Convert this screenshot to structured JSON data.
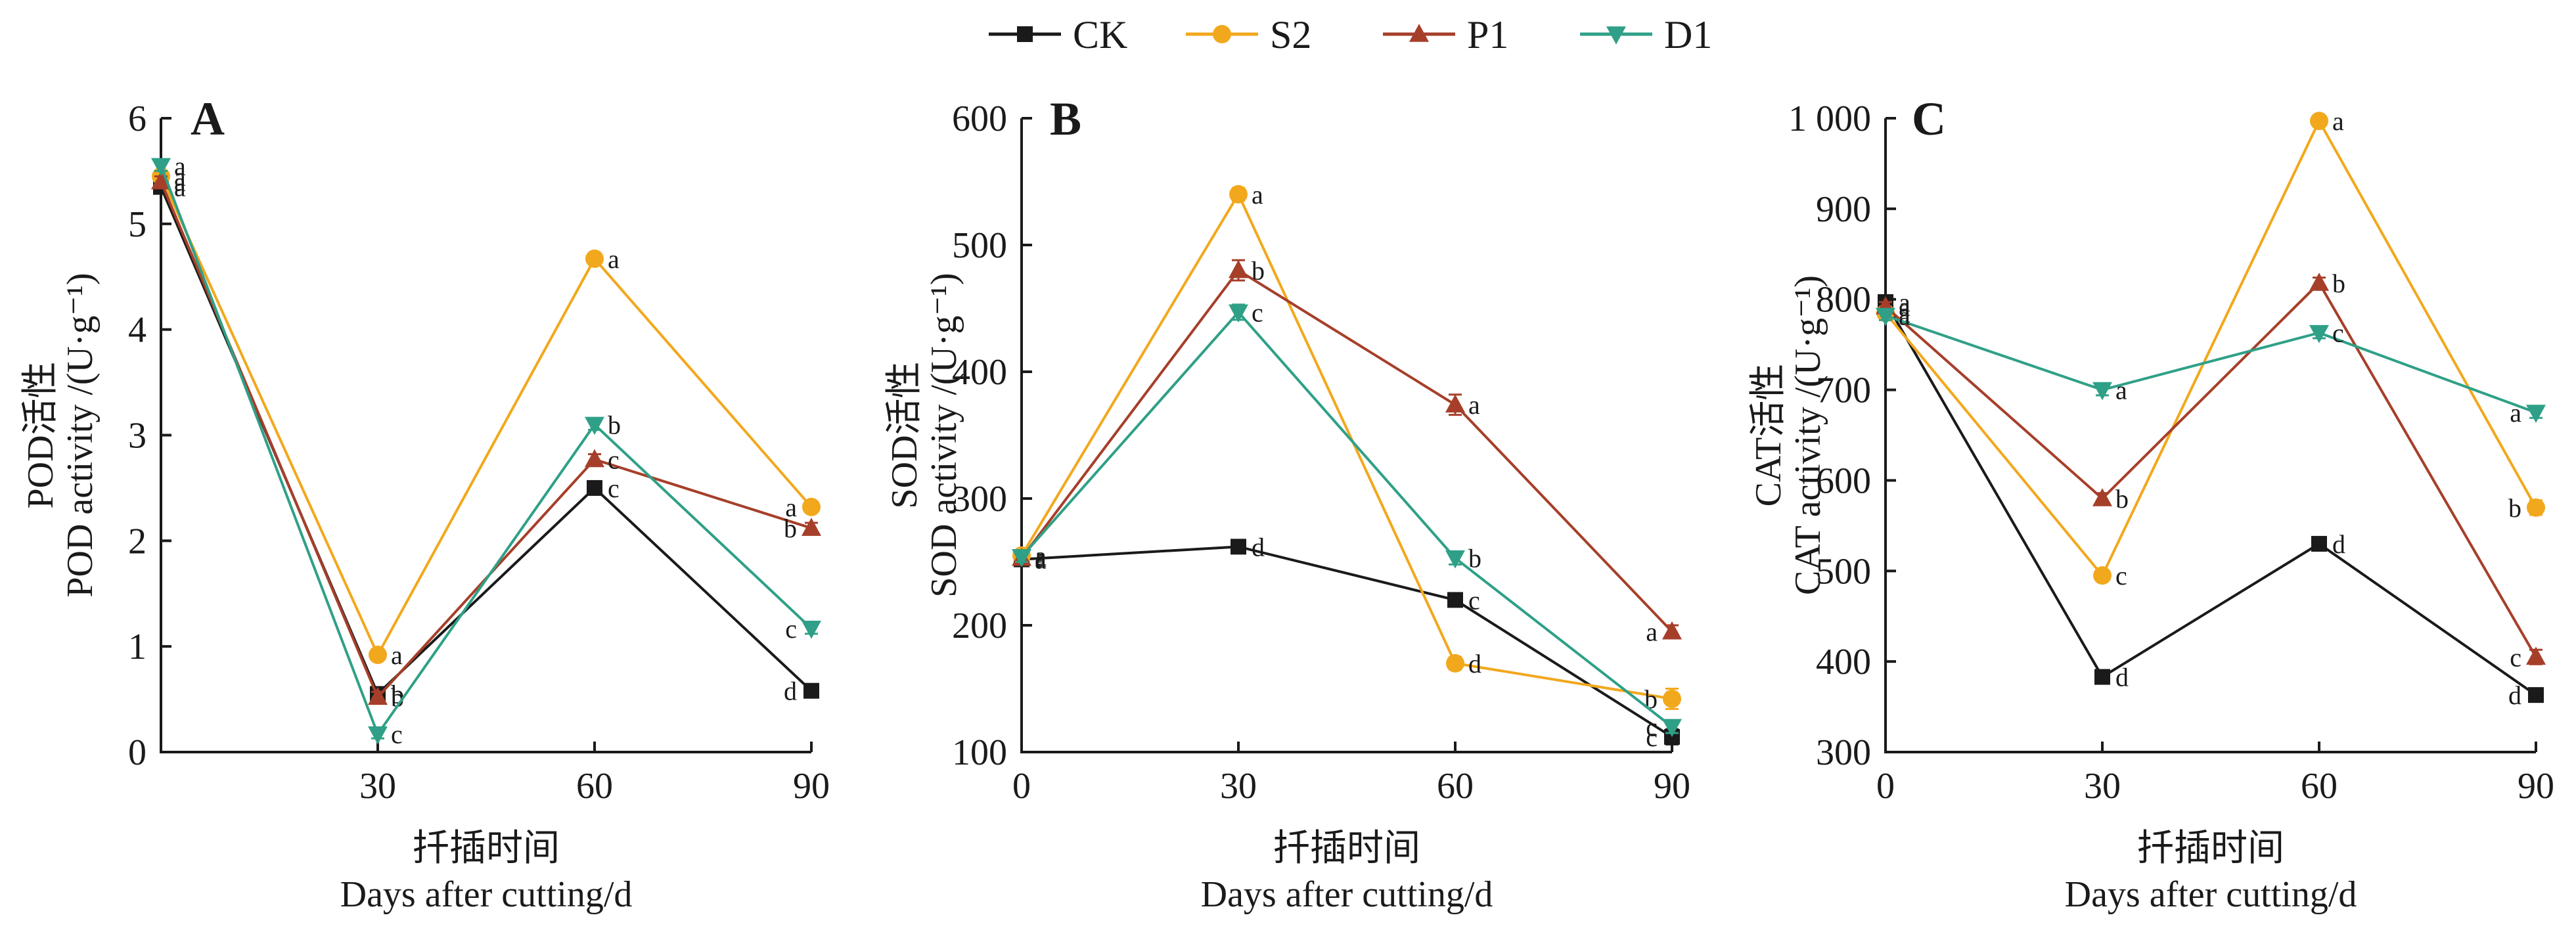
{
  "legend": [
    {
      "name": "CK",
      "color": "#1a1a1a",
      "marker": "square"
    },
    {
      "name": "S2",
      "color": "#f2a81d",
      "marker": "circle"
    },
    {
      "name": "P1",
      "color": "#a63f2a",
      "marker": "triangle-up"
    },
    {
      "name": "D1",
      "color": "#2fa087",
      "marker": "triangle-down"
    }
  ],
  "chart_data": [
    {
      "type": "line",
      "panel": "A",
      "ylabel_cn": "POD活性",
      "ylabel_en": "POD activity /(U·g⁻¹)",
      "xlabel_cn": "扦插时间",
      "xlabel_en": "Days after cutting/d",
      "x": [
        0,
        30,
        60,
        90
      ],
      "xticks": [
        "30",
        "60",
        "90"
      ],
      "xtick_values": [
        30,
        60,
        90
      ],
      "xlim": [
        0,
        90
      ],
      "ylim": [
        0,
        6
      ],
      "yticks": [
        0,
        1,
        2,
        3,
        4,
        5,
        6
      ],
      "ytick_labels": [
        "0",
        "1",
        "2",
        "3",
        "4",
        "5",
        "6"
      ],
      "series": [
        {
          "name": "CK",
          "values": [
            5.35,
            0.55,
            2.5,
            0.58
          ],
          "letters": [
            "a",
            "b",
            "c",
            "d"
          ],
          "err": [
            0.05,
            0.04,
            0.05,
            0.04
          ]
        },
        {
          "name": "S2",
          "values": [
            5.45,
            0.92,
            4.67,
            2.32
          ],
          "letters": [
            "a",
            "a",
            "a",
            "a"
          ],
          "err": [
            0.05,
            0.04,
            0.04,
            0.05
          ]
        },
        {
          "name": "P1",
          "values": [
            5.4,
            0.52,
            2.77,
            2.12
          ],
          "letters": [
            "a",
            "b",
            "c",
            "b"
          ],
          "err": [
            0.05,
            0.05,
            0.05,
            0.05
          ]
        },
        {
          "name": "D1",
          "values": [
            5.55,
            0.17,
            3.1,
            1.17
          ],
          "letters": [
            "a",
            "c",
            "b",
            "c"
          ],
          "err": [
            0.05,
            0.04,
            0.05,
            0.05
          ]
        }
      ]
    },
    {
      "type": "line",
      "panel": "B",
      "ylabel_cn": "SOD活性",
      "ylabel_en": "SOD activity /(U·g⁻¹)",
      "xlabel_cn": "扦插时间",
      "xlabel_en": "Days after cutting/d",
      "x": [
        0,
        30,
        60,
        90
      ],
      "xticks": [
        "0",
        "30",
        "60",
        "90"
      ],
      "xtick_values": [
        0,
        30,
        60,
        90
      ],
      "xlim": [
        0,
        90
      ],
      "ylim": [
        100,
        600
      ],
      "yticks": [
        100,
        200,
        300,
        400,
        500,
        600
      ],
      "ytick_labels": [
        "100",
        "200",
        "300",
        "400",
        "500",
        "600"
      ],
      "series": [
        {
          "name": "CK",
          "values": [
            252,
            262,
            220,
            112
          ],
          "letters": [
            "a",
            "d",
            "c",
            "c"
          ],
          "err": [
            4,
            4,
            4,
            6
          ]
        },
        {
          "name": "S2",
          "values": [
            255,
            540,
            170,
            142
          ],
          "letters": [
            "a",
            "a",
            "d",
            "b"
          ],
          "err": [
            4,
            5,
            5,
            8
          ]
        },
        {
          "name": "P1",
          "values": [
            253,
            480,
            374,
            195
          ],
          "letters": [
            "a",
            "b",
            "a",
            "a"
          ],
          "err": [
            4,
            8,
            8,
            5
          ]
        },
        {
          "name": "D1",
          "values": [
            254,
            447,
            253,
            120
          ],
          "letters": [
            "a",
            "c",
            "b",
            "c"
          ],
          "err": [
            4,
            6,
            5,
            5
          ]
        }
      ]
    },
    {
      "type": "line",
      "panel": "C",
      "ylabel_cn": "CAT活性",
      "ylabel_en": "CAT activity /(U·g⁻¹)",
      "xlabel_cn": "扦插时间",
      "xlabel_en": "Days after cutting/d",
      "x": [
        0,
        30,
        60,
        90
      ],
      "xticks": [
        "0",
        "30",
        "60",
        "90"
      ],
      "xtick_values": [
        0,
        30,
        60,
        90
      ],
      "xlim": [
        0,
        90
      ],
      "ylim": [
        300,
        1000
      ],
      "yticks": [
        300,
        400,
        500,
        600,
        700,
        800,
        900,
        1000
      ],
      "ytick_labels": [
        "300",
        "400",
        "500",
        "600",
        "700",
        "800",
        "900",
        "1 000"
      ],
      "series": [
        {
          "name": "CK",
          "values": [
            797,
            383,
            530,
            363
          ],
          "letters": [
            "a",
            "d",
            "d",
            "d"
          ],
          "err": [
            5,
            5,
            5,
            6
          ]
        },
        {
          "name": "S2",
          "values": [
            785,
            495,
            997,
            570
          ],
          "letters": [
            "a",
            "c",
            "a",
            "b"
          ],
          "err": [
            5,
            5,
            5,
            8
          ]
        },
        {
          "name": "P1",
          "values": [
            792,
            580,
            818,
            405
          ],
          "letters": [
            "a",
            "b",
            "b",
            "c"
          ],
          "err": [
            5,
            6,
            6,
            8
          ]
        },
        {
          "name": "D1",
          "values": [
            782,
            700,
            763,
            675
          ],
          "letters": [
            "a",
            "a",
            "c",
            "a"
          ],
          "err": [
            5,
            6,
            6,
            6
          ]
        }
      ]
    }
  ]
}
